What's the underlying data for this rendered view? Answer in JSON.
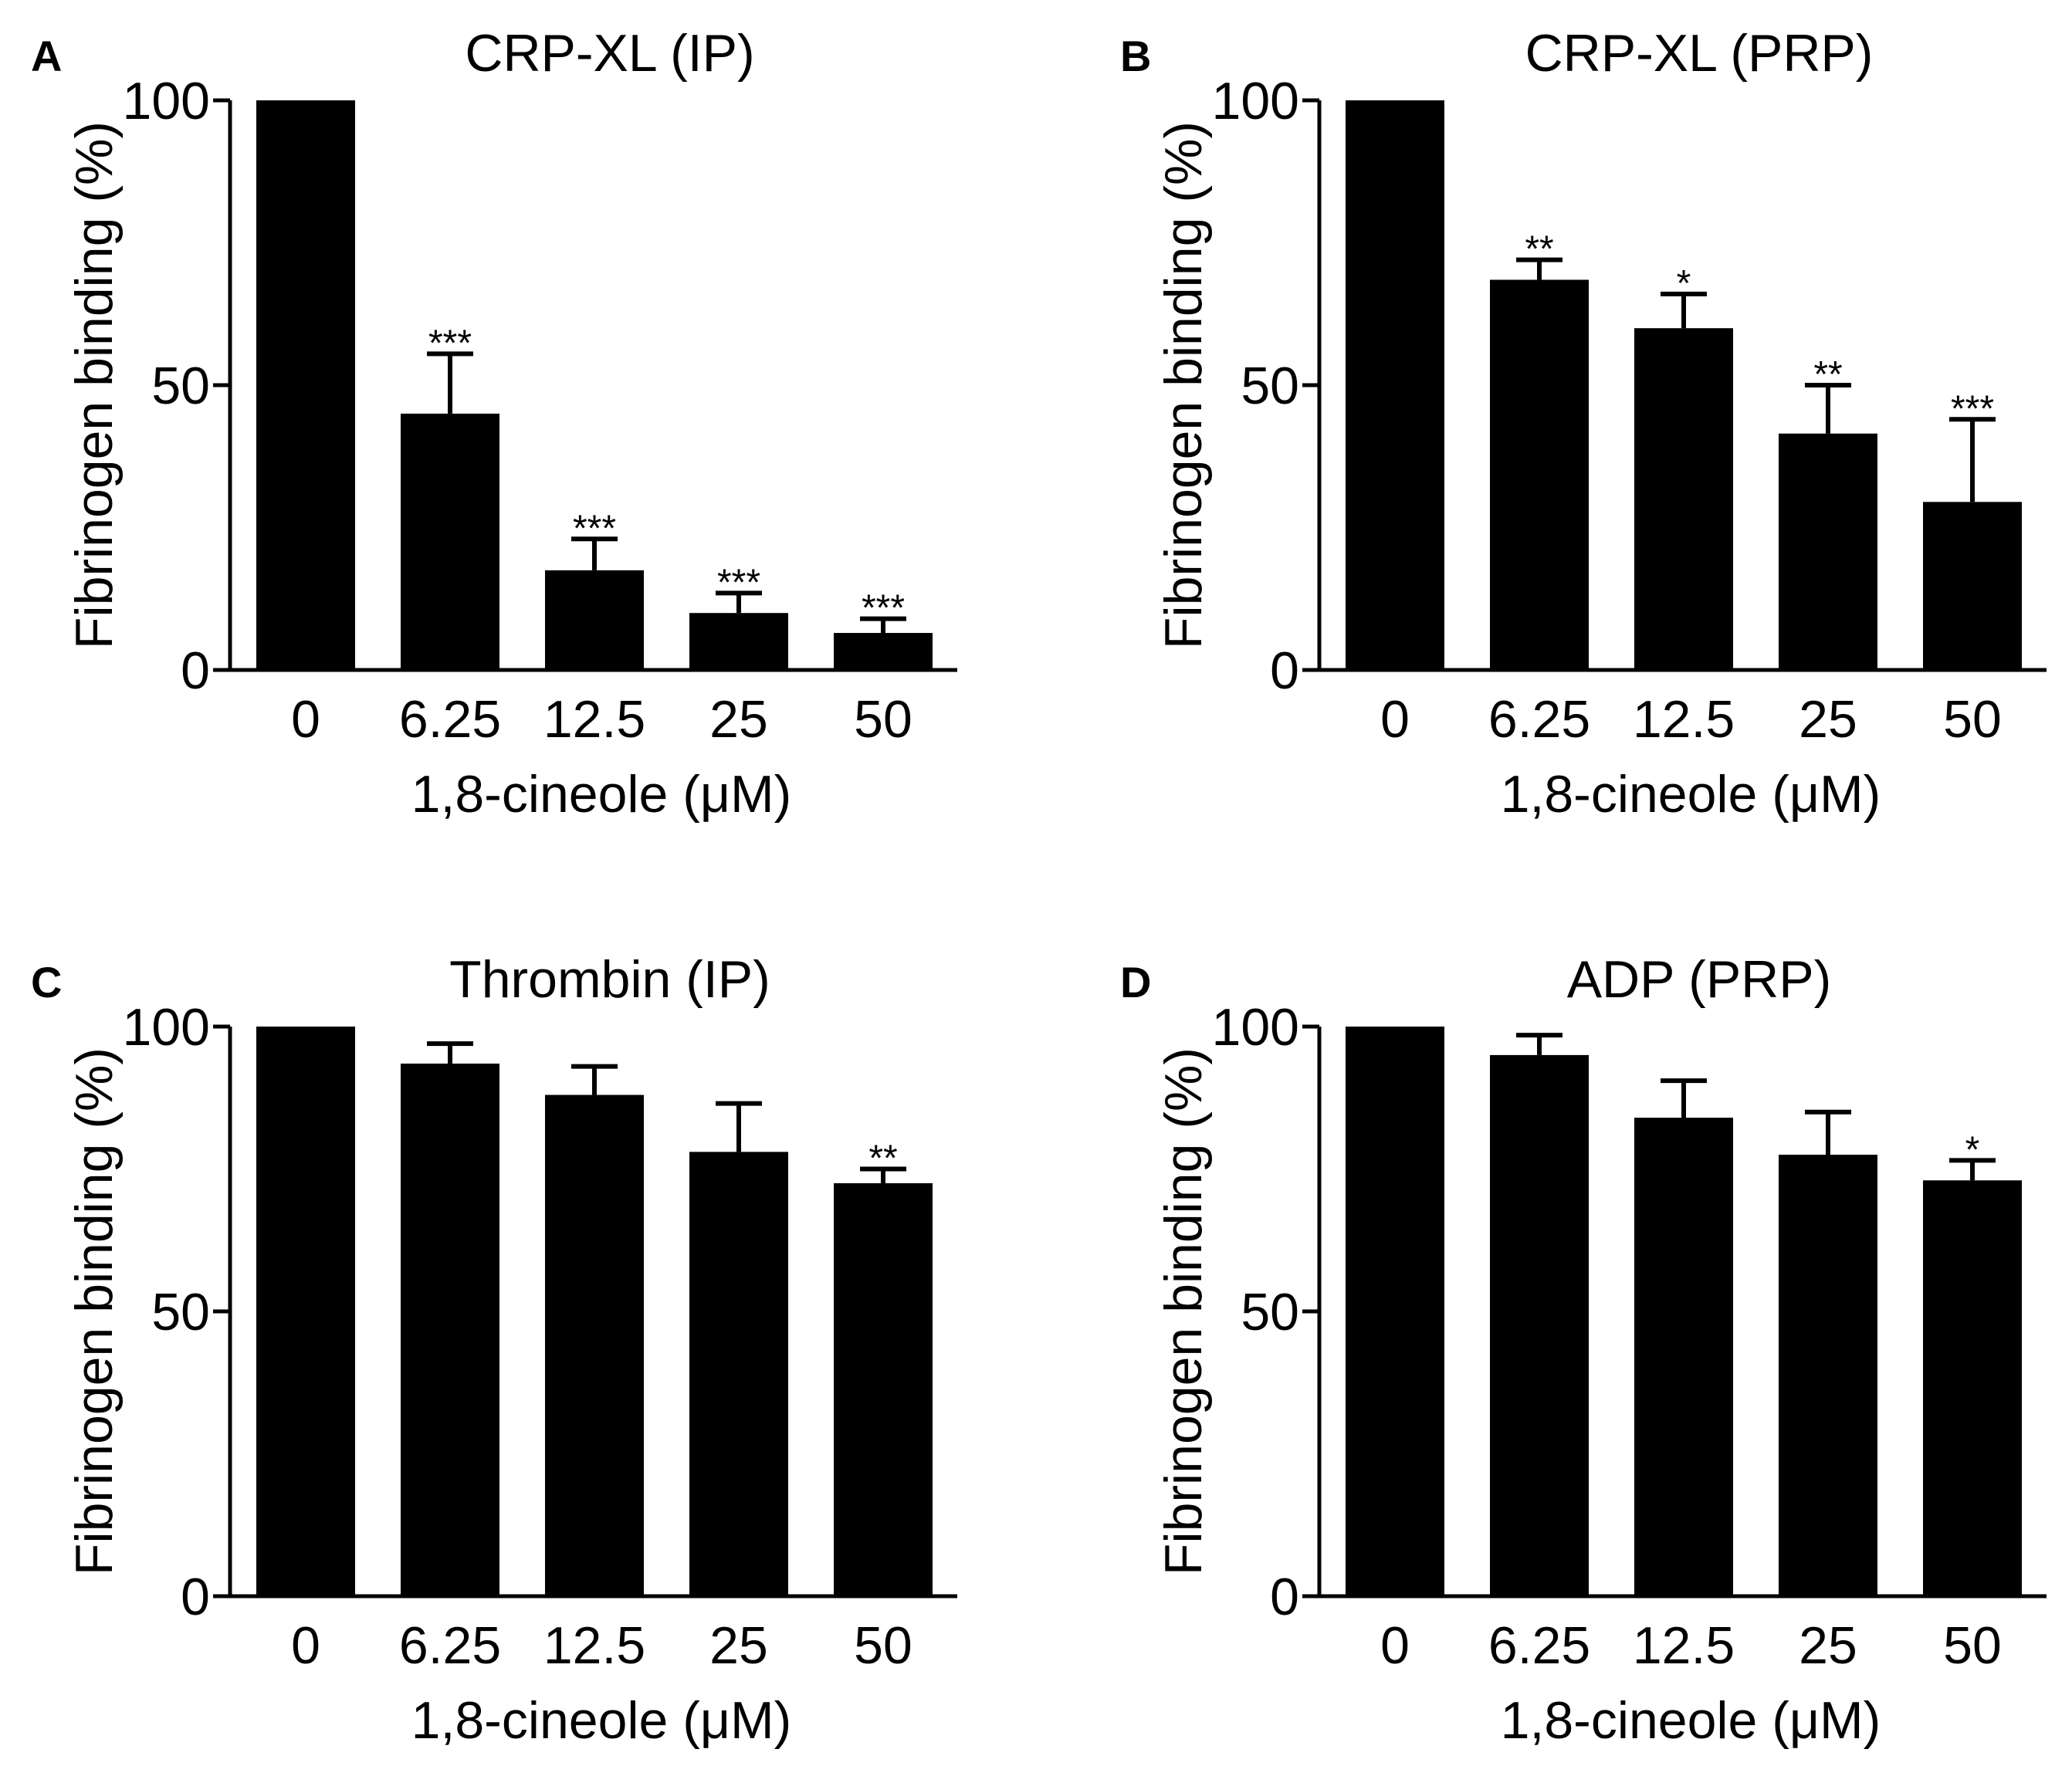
{
  "figure": {
    "bar_color": "#000000",
    "background": "#ffffff"
  },
  "chart_data": [
    {
      "panel": "A",
      "type": "bar",
      "title": "CRP-XL (IP)",
      "xlabel": "1,8-cineole (μM)",
      "ylabel": "Fibrinogen binding (%)",
      "categories": [
        "0",
        "6.25",
        "12.5",
        "25",
        "50"
      ],
      "values": [
        100,
        45,
        17.5,
        10,
        6.5
      ],
      "errors": [
        0,
        10.5,
        5.5,
        3.5,
        2.5
      ],
      "significance": [
        "",
        "***",
        "***",
        "***",
        "***"
      ],
      "ylim": [
        0,
        100
      ],
      "yticks": [
        "0",
        "50",
        "100"
      ]
    },
    {
      "panel": "B",
      "type": "bar",
      "title": "CRP-XL (PRP)",
      "xlabel": "1,8-cineole (μM)",
      "ylabel": "Fibrinogen binding (%)",
      "categories": [
        "0",
        "6.25",
        "12.5",
        "25",
        "50"
      ],
      "values": [
        100,
        68.5,
        60,
        41.5,
        29.5
      ],
      "errors": [
        0,
        3.5,
        6,
        8.5,
        14.5
      ],
      "significance": [
        "",
        "**",
        "*",
        "**",
        "***"
      ],
      "ylim": [
        0,
        100
      ],
      "yticks": [
        "0",
        "50",
        "100"
      ]
    },
    {
      "panel": "C",
      "type": "bar",
      "title": "Thrombin (IP)",
      "xlabel": "1,8-cineole (μM)",
      "ylabel": "Fibrinogen binding (%)",
      "categories": [
        "0",
        "6.25",
        "12.5",
        "25",
        "50"
      ],
      "values": [
        100,
        93.5,
        88,
        78,
        72.5
      ],
      "errors": [
        0,
        3.5,
        5,
        8.5,
        2.5
      ],
      "significance": [
        "",
        "",
        "",
        "",
        "**"
      ],
      "ylim": [
        0,
        100
      ],
      "yticks": [
        "0",
        "50",
        "100"
      ]
    },
    {
      "panel": "D",
      "type": "bar",
      "title": "ADP (PRP)",
      "xlabel": "1,8-cineole (μM)",
      "ylabel": "Fibrinogen binding (%)",
      "categories": [
        "0",
        "6.25",
        "12.5",
        "25",
        "50"
      ],
      "values": [
        100,
        95,
        84,
        77.5,
        73
      ],
      "errors": [
        0,
        3.5,
        6.5,
        7.5,
        3.5
      ],
      "significance": [
        "",
        "",
        "",
        "",
        "*"
      ],
      "ylim": [
        0,
        100
      ],
      "yticks": [
        "0",
        "50",
        "100"
      ]
    }
  ]
}
